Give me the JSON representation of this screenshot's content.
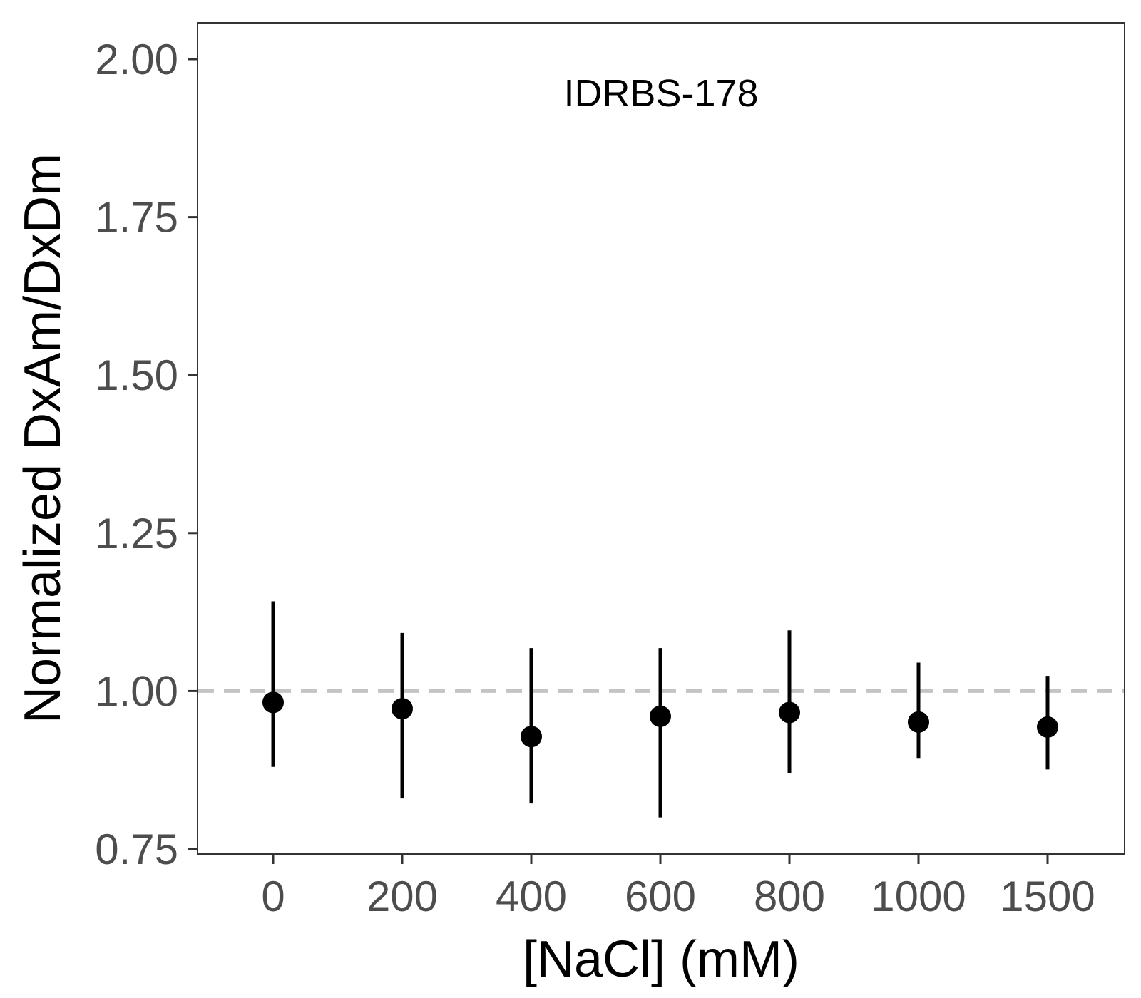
{
  "chart_data": {
    "type": "scatter",
    "annotation": "IDRBS-178",
    "xlabel": "[NaCl] (mM)",
    "ylabel": "Normalized DxAm/DxDm",
    "categories": [
      "0",
      "200",
      "400",
      "600",
      "800",
      "1000",
      "1500"
    ],
    "ylim": [
      0.75,
      2.0
    ],
    "yticks": [
      "0.75",
      "1.00",
      "1.25",
      "1.50",
      "1.75",
      "2.00"
    ],
    "grid": false,
    "series": [
      {
        "values": [
          0.982,
          0.972,
          0.928,
          0.96,
          0.966,
          0.951,
          0.943
        ],
        "err_low": [
          0.88,
          0.83,
          0.822,
          0.8,
          0.87,
          0.893,
          0.876
        ],
        "err_high": [
          1.142,
          1.092,
          1.068,
          1.068,
          1.096,
          1.045,
          1.024
        ]
      }
    ],
    "reference_line": {
      "y": 1.0,
      "style": "dashed"
    },
    "colors": {
      "points": "#000000",
      "reference_line": "#c4c4c4",
      "axis": "#333333",
      "tick_text": "#4d4d4d"
    }
  }
}
